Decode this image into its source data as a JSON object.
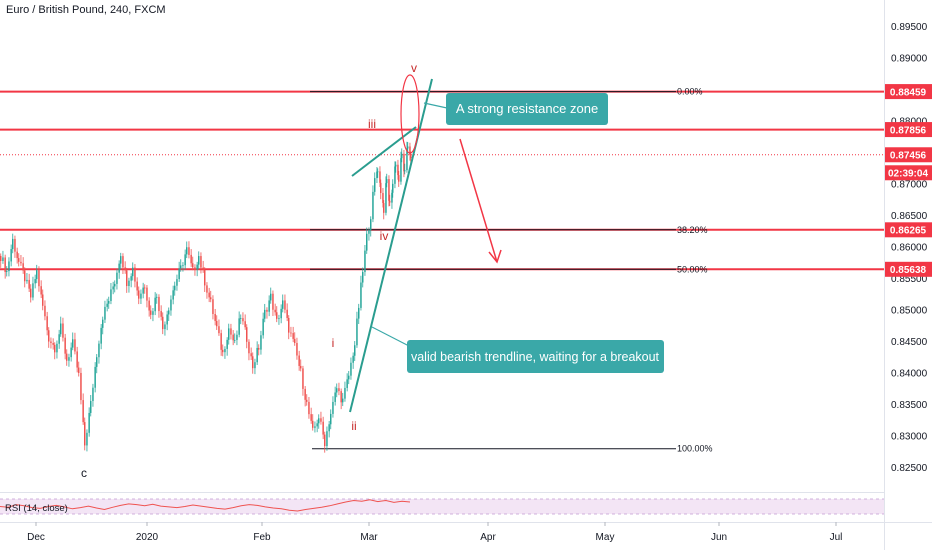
{
  "header": {
    "title": "Euro / British Pound, 240, FXCM"
  },
  "rsi": {
    "label": "RSI (14, close)"
  },
  "colors": {
    "up": "#26a69a",
    "down": "#ef5350",
    "hline": "#f23645",
    "teal": "#2a9d8f",
    "callout_bg": "#3aa8a8",
    "rsi_band": "#f3e5f5",
    "rsi_line": "#ef5350"
  },
  "chart_data": {
    "type": "candlestick",
    "ylim": [
      0.822,
      0.8985
    ],
    "x_axis_labels": [
      "Dec",
      "2020",
      "Feb",
      "Mar",
      "Apr",
      "May",
      "Jun",
      "Jul"
    ],
    "y_axis_ticks": [
      "0.89500",
      "0.89000",
      "0.88500",
      "0.88000",
      "0.87500",
      "0.87000",
      "0.86500",
      "0.86000",
      "0.85500",
      "0.85000",
      "0.84500",
      "0.84000",
      "0.83500",
      "0.83000",
      "0.82500"
    ],
    "price_labels": [
      {
        "text": "0.88459",
        "value": 0.88459,
        "style": "red"
      },
      {
        "text": "0.87856",
        "value": 0.87856,
        "style": "red"
      },
      {
        "text": "0.87456",
        "value": 0.87456,
        "style": "red"
      },
      {
        "text": "02:39:04",
        "value": 0.87456,
        "style": "timer"
      },
      {
        "text": "0.86265",
        "value": 0.86265,
        "style": "red"
      },
      {
        "text": "0.85638",
        "value": 0.85638,
        "style": "red"
      }
    ],
    "horizontal_lines": [
      0.88459,
      0.87856,
      0.86265,
      0.85638
    ],
    "current_price": 0.87456,
    "fibonacci": [
      {
        "label": "0.00%",
        "value": 0.88459
      },
      {
        "label": "38.20%",
        "value": 0.86265
      },
      {
        "label": "50.00%",
        "value": 0.85638
      },
      {
        "label": "100.00%",
        "value": 0.8279
      }
    ],
    "wave_labels": [
      "c",
      "i",
      "ii",
      "iii",
      "iv",
      "v"
    ],
    "annotations": [
      "A strong resistance zone",
      "valid bearish trendline, waiting for a breakout"
    ],
    "price_path": [
      [
        0,
        0.8585
      ],
      [
        6,
        0.856
      ],
      [
        12,
        0.861
      ],
      [
        18,
        0.8575
      ],
      [
        24,
        0.855
      ],
      [
        30,
        0.852
      ],
      [
        36,
        0.856
      ],
      [
        42,
        0.8505
      ],
      [
        48,
        0.8455
      ],
      [
        54,
        0.844
      ],
      [
        60,
        0.847
      ],
      [
        66,
        0.842
      ],
      [
        72,
        0.8445
      ],
      [
        78,
        0.8395
      ],
      [
        84,
        0.8285
      ],
      [
        90,
        0.835
      ],
      [
        96,
        0.843
      ],
      [
        102,
        0.849
      ],
      [
        108,
        0.8515
      ],
      [
        114,
        0.8545
      ],
      [
        120,
        0.859
      ],
      [
        126,
        0.8545
      ],
      [
        132,
        0.8565
      ],
      [
        138,
        0.852
      ],
      [
        144,
        0.854
      ],
      [
        150,
        0.849
      ],
      [
        156,
        0.8525
      ],
      [
        162,
        0.847
      ],
      [
        168,
        0.8505
      ],
      [
        174,
        0.854
      ],
      [
        180,
        0.8565
      ],
      [
        186,
        0.8595
      ],
      [
        192,
        0.856
      ],
      [
        198,
        0.8585
      ],
      [
        204,
        0.8545
      ],
      [
        210,
        0.851
      ],
      [
        216,
        0.847
      ],
      [
        222,
        0.843
      ],
      [
        228,
        0.847
      ],
      [
        234,
        0.8445
      ],
      [
        240,
        0.849
      ],
      [
        246,
        0.8455
      ],
      [
        252,
        0.841
      ],
      [
        258,
        0.844
      ],
      [
        264,
        0.8495
      ],
      [
        270,
        0.852
      ],
      [
        276,
        0.848
      ],
      [
        282,
        0.851
      ],
      [
        288,
        0.847
      ],
      [
        294,
        0.844
      ],
      [
        300,
        0.84
      ],
      [
        306,
        0.835
      ],
      [
        312,
        0.8305
      ],
      [
        318,
        0.833
      ],
      [
        324,
        0.829
      ],
      [
        330,
        0.8335
      ],
      [
        336,
        0.8375
      ],
      [
        342,
        0.8355
      ],
      [
        348,
        0.8395
      ],
      [
        354,
        0.8445
      ],
      [
        358,
        0.8505
      ],
      [
        362,
        0.856
      ],
      [
        366,
        0.8615
      ],
      [
        370,
        0.865
      ],
      [
        374,
        0.8705
      ],
      [
        377,
        0.8725
      ],
      [
        380,
        0.869
      ],
      [
        383,
        0.866
      ],
      [
        386,
        0.8705
      ],
      [
        389,
        0.8665
      ],
      [
        392,
        0.87
      ],
      [
        395,
        0.8735
      ],
      [
        398,
        0.8705
      ],
      [
        401,
        0.8745
      ],
      [
        404,
        0.8715
      ],
      [
        407,
        0.876
      ],
      [
        410,
        0.8745
      ]
    ],
    "rsi_series": [
      50,
      48,
      55,
      52,
      47,
      45,
      50,
      53,
      49,
      44,
      47,
      51,
      46,
      42,
      48,
      53,
      57,
      55,
      52,
      56,
      51,
      49,
      47,
      50,
      54,
      51,
      48,
      45,
      43,
      47,
      52,
      55,
      53,
      49,
      46,
      44,
      40,
      38,
      42,
      45,
      48,
      52,
      57,
      62,
      66,
      64,
      68,
      63,
      66,
      61,
      64,
      62
    ]
  }
}
